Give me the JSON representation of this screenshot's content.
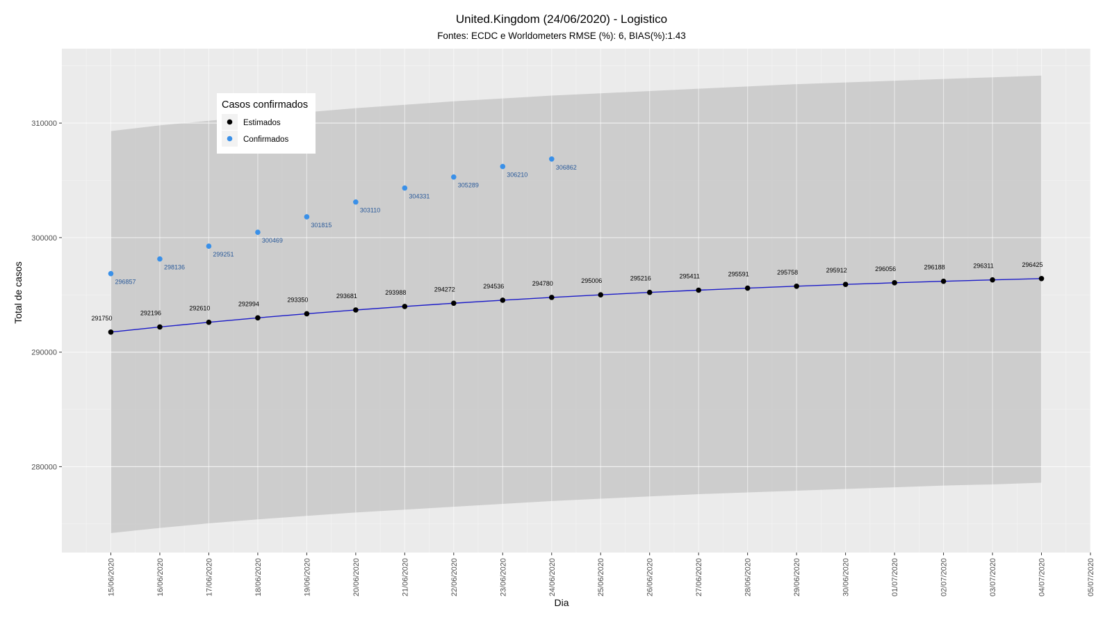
{
  "chart_data": {
    "type": "line",
    "title": "United.Kingdom (24/06/2020) - Logistico",
    "subtitle": "Fontes: ECDC e Worldometers RMSE (%): 6, BIAS(%):1.43",
    "xlabel": "Dia",
    "ylabel": "Total de casos",
    "x_ticks": [
      "15/06/2020",
      "16/06/2020",
      "17/06/2020",
      "18/06/2020",
      "19/06/2020",
      "20/06/2020",
      "21/06/2020",
      "22/06/2020",
      "23/06/2020",
      "24/06/2020",
      "25/06/2020",
      "26/06/2020",
      "27/06/2020",
      "28/06/2020",
      "29/06/2020",
      "30/06/2020",
      "01/07/2020",
      "02/07/2020",
      "03/07/2020",
      "04/07/2020",
      "05/07/2020"
    ],
    "y_ticks": [
      280000,
      290000,
      300000,
      310000
    ],
    "y_tick_labels": [
      "280000",
      "290000",
      "300000",
      "310000"
    ],
    "ylim": [
      272500,
      316500
    ],
    "x_range": [
      "14/06/2020",
      "05/07/2020"
    ],
    "grid": true,
    "legend": {
      "title": "Casos confirmados",
      "position": "top-left",
      "entries": [
        "Estimados",
        "Confirmados"
      ]
    },
    "colors": {
      "estimados": "#000000",
      "line": "#1a1ac8",
      "confirmados": "#3a90e8",
      "confirmados_label": "#2a5a9a",
      "ribbon": "#c8c8c8",
      "panel": "#ebebeb"
    },
    "series": [
      {
        "name": "Estimados",
        "x": [
          "15/06/2020",
          "16/06/2020",
          "17/06/2020",
          "18/06/2020",
          "19/06/2020",
          "20/06/2020",
          "21/06/2020",
          "22/06/2020",
          "23/06/2020",
          "24/06/2020",
          "25/06/2020",
          "26/06/2020",
          "27/06/2020",
          "28/06/2020",
          "29/06/2020",
          "30/06/2020",
          "01/07/2020",
          "02/07/2020",
          "03/07/2020",
          "04/07/2020"
        ],
        "values": [
          291750,
          292196,
          292610,
          292994,
          293350,
          293681,
          293988,
          294272,
          294536,
          294780,
          295006,
          295216,
          295411,
          295591,
          295758,
          295912,
          296056,
          296188,
          296311,
          296425
        ],
        "labels": [
          "291750",
          "292196",
          "292610",
          "292994",
          "293350",
          "293681",
          "293988",
          "294272",
          "294536",
          "294780",
          "295006",
          "295216",
          "295411",
          "295591",
          "295758",
          "295912",
          "296056",
          "296188",
          "296311",
          "296425"
        ],
        "ribbon_upper": [
          309300,
          309800,
          310200,
          310600,
          310950,
          311300,
          311600,
          311900,
          312150,
          312400,
          312600,
          312800,
          313000,
          313200,
          313400,
          313550,
          313700,
          313850,
          314000,
          314150
        ],
        "ribbon_lower": [
          274200,
          274650,
          275050,
          275400,
          275700,
          276000,
          276250,
          276500,
          276750,
          277000,
          277200,
          277400,
          277600,
          277750,
          277900,
          278050,
          278200,
          278350,
          278450,
          278600
        ]
      },
      {
        "name": "Confirmados",
        "x": [
          "15/06/2020",
          "16/06/2020",
          "17/06/2020",
          "18/06/2020",
          "19/06/2020",
          "20/06/2020",
          "21/06/2020",
          "22/06/2020",
          "23/06/2020",
          "24/06/2020"
        ],
        "values": [
          296857,
          298136,
          299251,
          300469,
          301815,
          303110,
          304331,
          305289,
          306210,
          306862
        ],
        "labels": [
          "296857",
          "298136",
          "299251",
          "300469",
          "301815",
          "303110",
          "304331",
          "305289",
          "306210",
          "306862"
        ]
      }
    ]
  }
}
